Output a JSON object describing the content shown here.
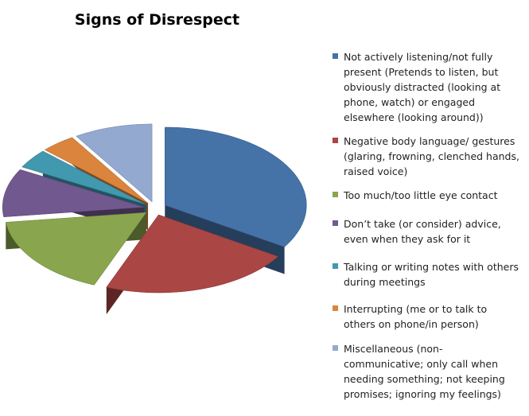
{
  "chart_data": {
    "type": "pie3d",
    "title": "Signs of Disrespect",
    "categories": [
      "Not actively listening/not fully present (Pretends to listen, but obviously distracted (looking at phone, watch) or engaged elsewhere (looking around))",
      "Negative body language/ gestures (glaring, frowning, clenched hands, raised voice)",
      "Too much/too little eye contact",
      "Don’t take (or consider) advice, even when they ask for it",
      "Talking or writing notes with others during meetings",
      "Interrupting (me or to talk to others on phone/in person)",
      "Miscellaneous (non-communicative; only call when needing something; not keeping promises; ignoring my feelings)"
    ],
    "values": [
      34,
      22,
      17,
      10,
      4,
      4,
      9
    ],
    "colors": [
      "#4572a7",
      "#aa4643",
      "#89a54e",
      "#71588f",
      "#4198af",
      "#db843d",
      "#93a9cf"
    ],
    "legend": "right"
  }
}
